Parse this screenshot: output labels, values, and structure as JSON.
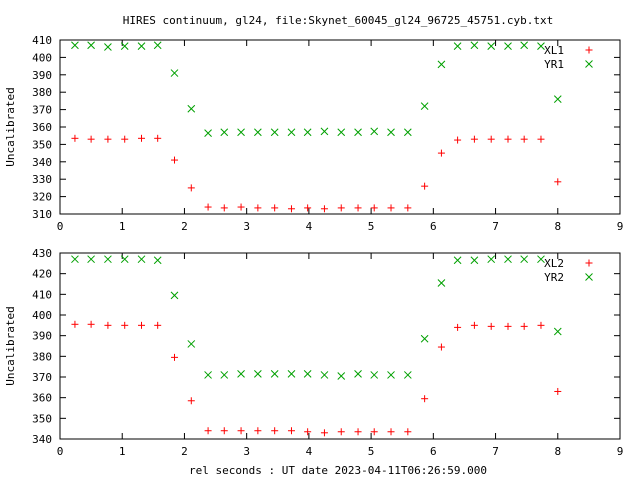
{
  "page": {
    "title": "HIRES continuum, gl24, file:Skynet_60045_gl24_96725_45751.cyb.txt",
    "xlabel": "rel seconds : UT date 2023-04-11T06:26:59.000"
  },
  "colors": {
    "red_marker": "#ff0000",
    "green_marker": "#00a000",
    "frame": "#000000",
    "background": "#ffffff"
  },
  "chart_data": [
    {
      "type": "scatter",
      "ylabel": "Uncalibrated",
      "xlim": [
        0,
        9
      ],
      "ylim": [
        310,
        410
      ],
      "xticks": [
        0,
        1,
        2,
        3,
        4,
        5,
        6,
        7,
        8,
        9
      ],
      "yticks": [
        310,
        320,
        330,
        340,
        350,
        360,
        370,
        380,
        390,
        400,
        410
      ],
      "legend_position": "top-right",
      "grid": false,
      "series": [
        {
          "name": "XL1",
          "marker": "plus",
          "color": "#ff0000",
          "x": [
            0.24,
            0.5,
            0.77,
            1.04,
            1.31,
            1.57,
            1.84,
            2.11,
            2.38,
            2.64,
            2.91,
            3.18,
            3.45,
            3.72,
            3.98,
            4.25,
            4.52,
            4.79,
            5.05,
            5.32,
            5.59,
            5.86,
            6.13,
            6.39,
            6.66,
            6.93,
            7.2,
            7.46,
            7.73,
            8.0
          ],
          "y": [
            353.5,
            353,
            353,
            353,
            353.5,
            353.5,
            341,
            325,
            314,
            313.5,
            314,
            313.5,
            313.5,
            313,
            313.5,
            313,
            313.5,
            313.5,
            313.5,
            313.5,
            313.5,
            326,
            345,
            352.5,
            353,
            353,
            353,
            353,
            353,
            328.5
          ]
        },
        {
          "name": "YR1",
          "marker": "cross",
          "color": "#00a000",
          "x": [
            0.24,
            0.5,
            0.77,
            1.04,
            1.31,
            1.57,
            1.84,
            2.11,
            2.38,
            2.64,
            2.91,
            3.18,
            3.45,
            3.72,
            3.98,
            4.25,
            4.52,
            4.79,
            5.05,
            5.32,
            5.59,
            5.86,
            6.13,
            6.39,
            6.66,
            6.93,
            7.2,
            7.46,
            7.73,
            8.0
          ],
          "y": [
            407,
            407,
            406,
            406.5,
            406.5,
            407,
            391,
            370.5,
            356.5,
            357,
            357,
            357,
            357,
            357,
            357,
            357.5,
            357,
            357,
            357.5,
            357,
            357,
            372,
            396,
            406.5,
            407,
            406.5,
            406.5,
            407,
            406.5,
            376
          ]
        }
      ]
    },
    {
      "type": "scatter",
      "ylabel": "Uncalibrated",
      "xlim": [
        0,
        9
      ],
      "ylim": [
        340,
        430
      ],
      "xticks": [
        0,
        1,
        2,
        3,
        4,
        5,
        6,
        7,
        8,
        9
      ],
      "yticks": [
        340,
        350,
        360,
        370,
        380,
        390,
        400,
        410,
        420,
        430
      ],
      "legend_position": "top-right",
      "grid": false,
      "series": [
        {
          "name": "XL2",
          "marker": "plus",
          "color": "#ff0000",
          "x": [
            0.24,
            0.5,
            0.77,
            1.04,
            1.31,
            1.57,
            1.84,
            2.11,
            2.38,
            2.64,
            2.91,
            3.18,
            3.45,
            3.72,
            3.98,
            4.25,
            4.52,
            4.79,
            5.05,
            5.32,
            5.59,
            5.86,
            6.13,
            6.39,
            6.66,
            6.93,
            7.2,
            7.46,
            7.73,
            8.0
          ],
          "y": [
            395.5,
            395.5,
            395,
            395,
            395,
            395,
            379.5,
            358.5,
            344,
            344,
            344,
            344,
            344,
            344,
            343.5,
            343,
            343.5,
            343.5,
            343.5,
            343.5,
            343.5,
            359.5,
            384.5,
            394,
            395,
            394.5,
            394.5,
            394.5,
            395,
            363
          ]
        },
        {
          "name": "YR2",
          "marker": "cross",
          "color": "#00a000",
          "x": [
            0.24,
            0.5,
            0.77,
            1.04,
            1.31,
            1.57,
            1.84,
            2.11,
            2.38,
            2.64,
            2.91,
            3.18,
            3.45,
            3.72,
            3.98,
            4.25,
            4.52,
            4.79,
            5.05,
            5.32,
            5.59,
            5.86,
            6.13,
            6.39,
            6.66,
            6.93,
            7.2,
            7.46,
            7.73,
            8.0
          ],
          "y": [
            427,
            427,
            427,
            427,
            427,
            426.5,
            409.5,
            386,
            371,
            371,
            371.5,
            371.5,
            371.5,
            371.5,
            371.5,
            371,
            370.5,
            371.5,
            371,
            371,
            371,
            388.5,
            415.5,
            426.5,
            426.5,
            427,
            427,
            427,
            427,
            392
          ]
        }
      ]
    }
  ]
}
